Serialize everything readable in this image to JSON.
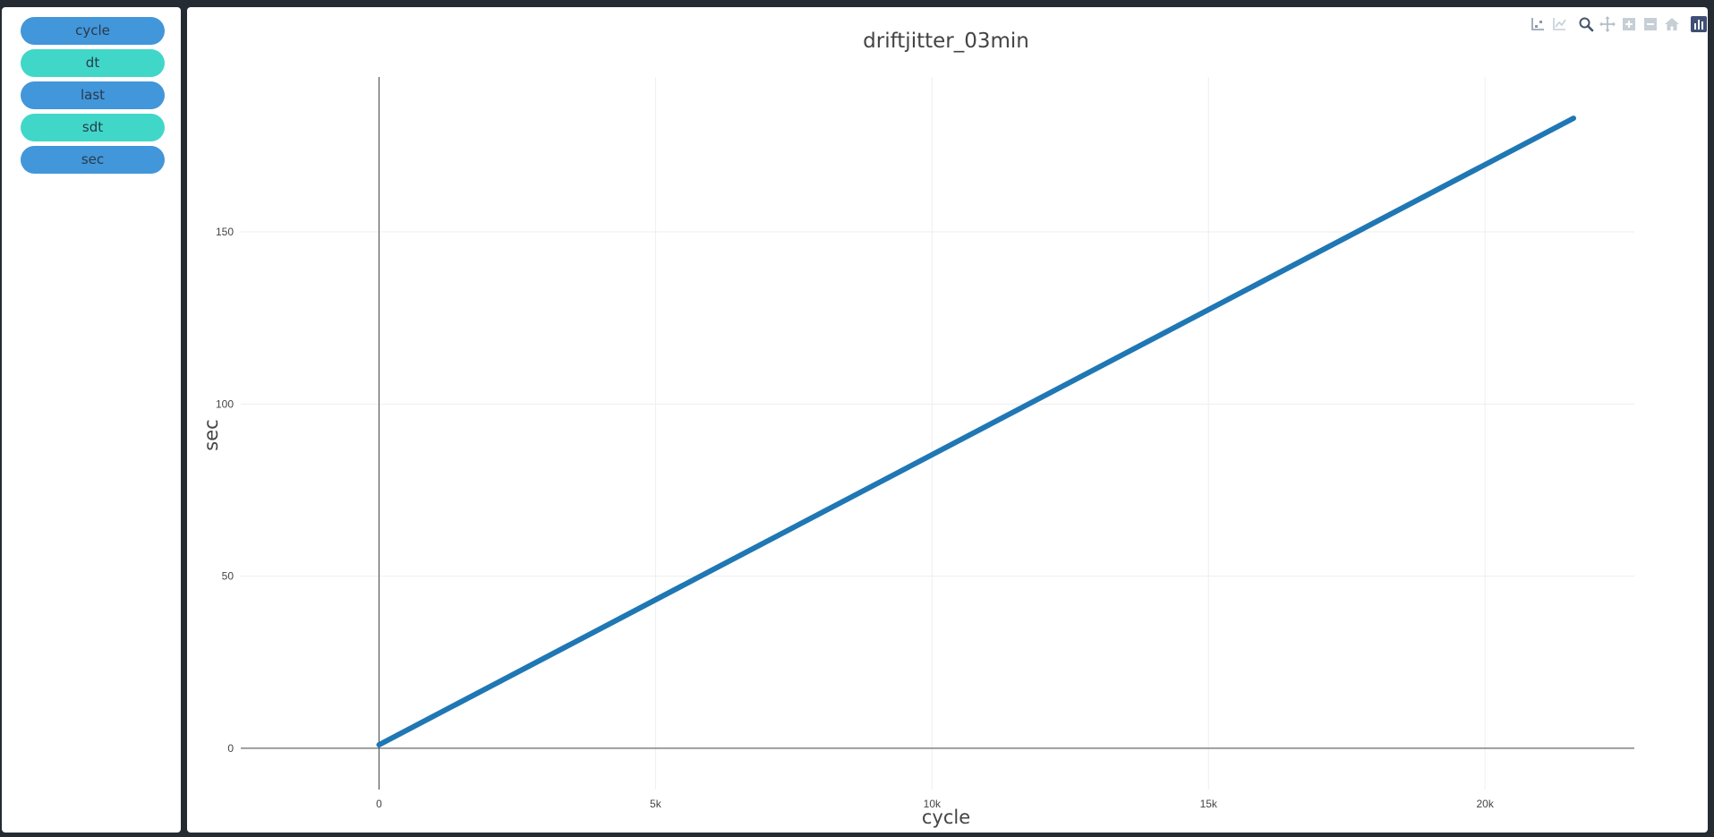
{
  "sidebar": {
    "buttons": [
      {
        "label": "cycle",
        "color": "#4296da"
      },
      {
        "label": "dt",
        "color": "#40d7c9"
      },
      {
        "label": "last",
        "color": "#4296da"
      },
      {
        "label": "sdt",
        "color": "#40d7c9"
      },
      {
        "label": "sec",
        "color": "#4296da"
      }
    ]
  },
  "modebar": {
    "icons": [
      "compare-data-icon",
      "closest-data-icon",
      "zoom-icon",
      "pan-icon",
      "zoom-in-icon",
      "zoom-out-icon",
      "reset-axes-icon",
      "plotly-logo-icon"
    ]
  },
  "chart_data": {
    "type": "line",
    "title": "driftjitter_03min",
    "xlabel": "cycle",
    "ylabel": "sec",
    "xlim": [
      -2500,
      22700
    ],
    "ylim": [
      -12,
      195
    ],
    "xticks": [
      0,
      5000,
      10000,
      15000,
      20000
    ],
    "xtick_labels": [
      "0",
      "5k",
      "10k",
      "15k",
      "20k"
    ],
    "yticks": [
      0,
      50,
      100,
      150
    ],
    "ytick_labels": [
      "0",
      "50",
      "100",
      "150"
    ],
    "grid": true,
    "legend": "none",
    "series": [
      {
        "color": "#1f77b4",
        "x": [
          0,
          21600
        ],
        "y": [
          1,
          183
        ]
      }
    ]
  }
}
